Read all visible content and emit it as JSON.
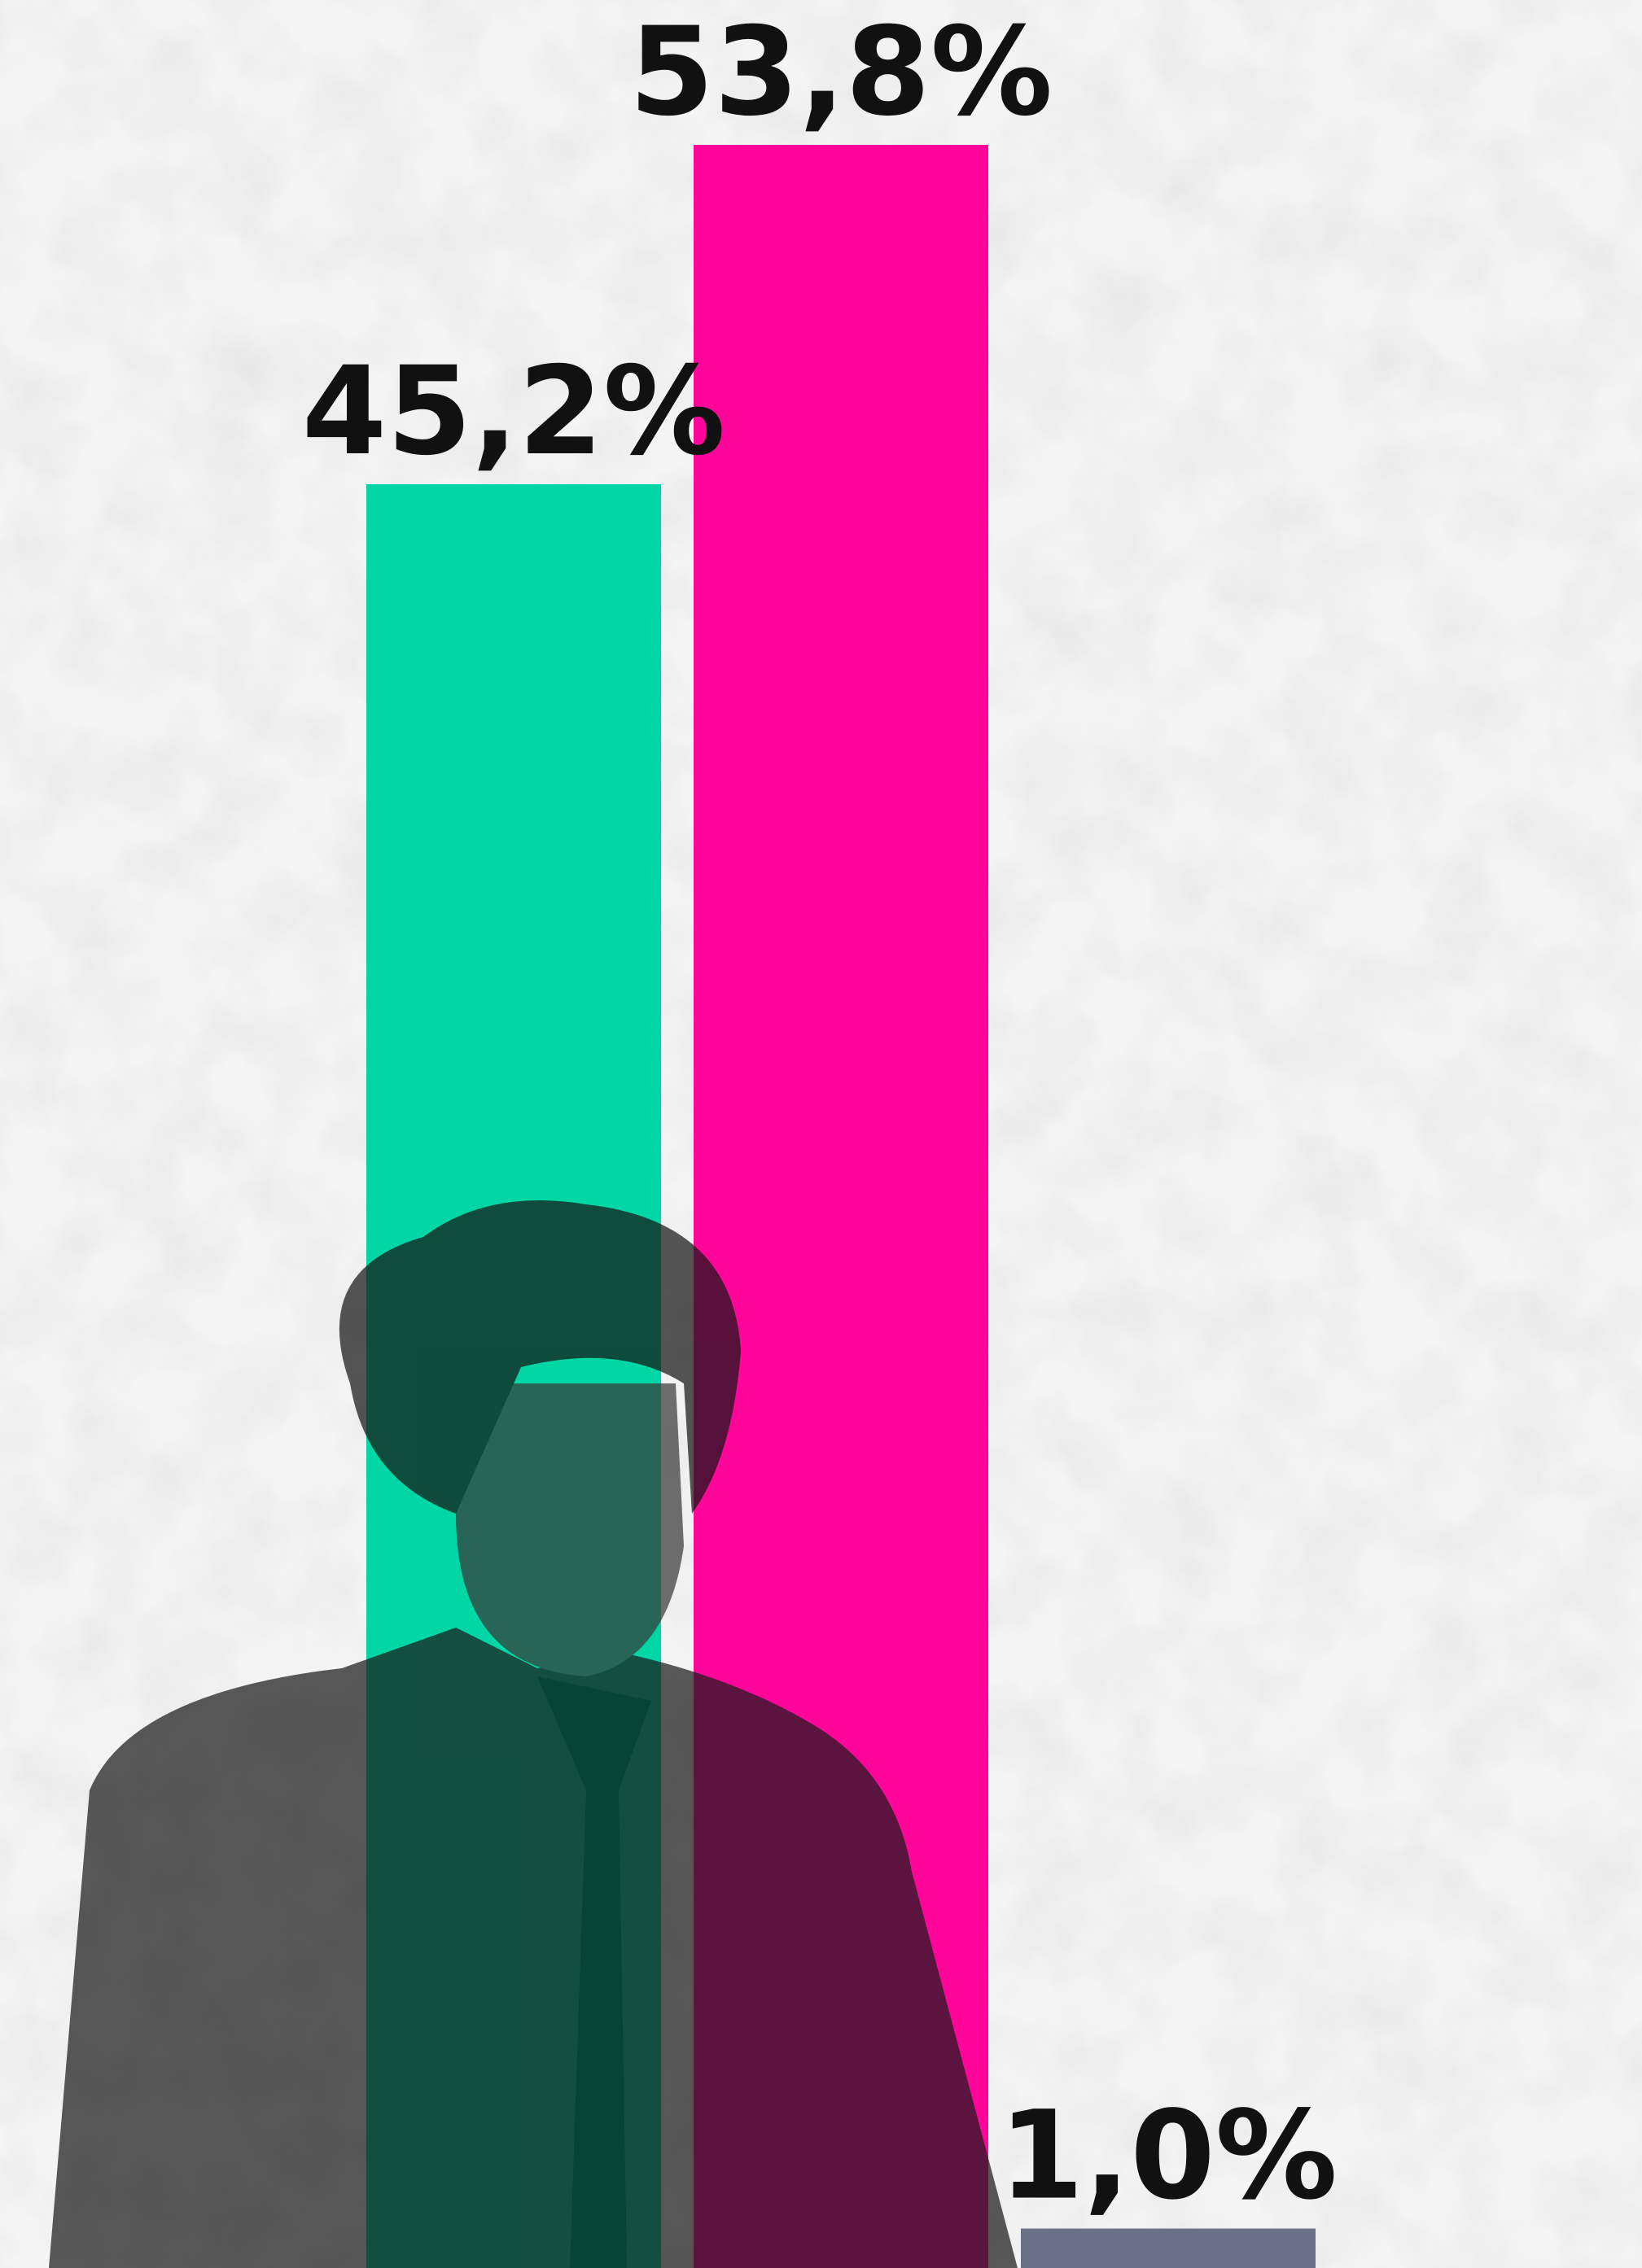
{
  "chart_data": {
    "type": "bar",
    "categories": [
      null,
      null,
      null
    ],
    "values": [
      45.2,
      53.8,
      1.0
    ],
    "value_labels": [
      "45,2%",
      "53,8%",
      "1,0%"
    ],
    "colors": [
      "#00d6a6",
      "#ff0599",
      "#6b7088"
    ]
  }
}
